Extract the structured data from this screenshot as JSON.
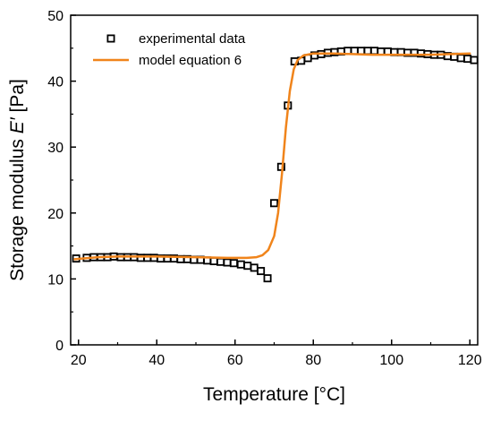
{
  "chart_data": {
    "type": "scatter",
    "xlabel": "Temperature [°C]",
    "ylabel_prefix": "Storage modulus ",
    "ylabel_symbol": "E′",
    "ylabel_suffix": " [Pa]",
    "xlim": [
      18,
      122
    ],
    "ylim": [
      0,
      50
    ],
    "xticks": [
      20,
      40,
      60,
      80,
      100,
      120
    ],
    "yticks": [
      0,
      10,
      20,
      30,
      40,
      50
    ],
    "legend_position": "top-left",
    "grid": false,
    "series": [
      {
        "name": "experimental data",
        "kind": "markers",
        "marker": "open-square",
        "color": "#000000",
        "points": [
          [
            19.4,
            13.1
          ],
          [
            22.1,
            13.2
          ],
          [
            23.9,
            13.3
          ],
          [
            25.7,
            13.3
          ],
          [
            27.4,
            13.3
          ],
          [
            29.0,
            13.4
          ],
          [
            30.8,
            13.3
          ],
          [
            32.5,
            13.3
          ],
          [
            34.2,
            13.3
          ],
          [
            35.9,
            13.2
          ],
          [
            37.6,
            13.2
          ],
          [
            39.3,
            13.2
          ],
          [
            41.0,
            13.1
          ],
          [
            42.7,
            13.1
          ],
          [
            44.4,
            13.1
          ],
          [
            46.1,
            13.0
          ],
          [
            47.8,
            13.0
          ],
          [
            49.5,
            12.9
          ],
          [
            51.2,
            12.9
          ],
          [
            52.9,
            12.8
          ],
          [
            54.6,
            12.7
          ],
          [
            56.3,
            12.6
          ],
          [
            58.0,
            12.5
          ],
          [
            59.7,
            12.4
          ],
          [
            61.5,
            12.2
          ],
          [
            63.2,
            12.0
          ],
          [
            64.9,
            11.7
          ],
          [
            66.6,
            11.2
          ],
          [
            68.3,
            10.1
          ],
          [
            70.0,
            21.5
          ],
          [
            71.8,
            27.0
          ],
          [
            73.5,
            36.3
          ],
          [
            75.2,
            43.0
          ],
          [
            76.9,
            43.1
          ],
          [
            78.6,
            43.5
          ],
          [
            80.3,
            43.9
          ],
          [
            82.0,
            44.1
          ],
          [
            83.7,
            44.3
          ],
          [
            85.4,
            44.4
          ],
          [
            87.1,
            44.5
          ],
          [
            88.8,
            44.6
          ],
          [
            90.5,
            44.6
          ],
          [
            92.2,
            44.6
          ],
          [
            93.9,
            44.6
          ],
          [
            95.6,
            44.6
          ],
          [
            97.3,
            44.5
          ],
          [
            99.0,
            44.5
          ],
          [
            100.7,
            44.4
          ],
          [
            102.4,
            44.4
          ],
          [
            104.1,
            44.3
          ],
          [
            105.8,
            44.3
          ],
          [
            107.5,
            44.2
          ],
          [
            109.2,
            44.1
          ],
          [
            110.9,
            44.0
          ],
          [
            112.6,
            44.0
          ],
          [
            114.3,
            43.8
          ],
          [
            116.0,
            43.7
          ],
          [
            117.7,
            43.5
          ],
          [
            119.4,
            43.4
          ],
          [
            121.1,
            43.2
          ]
        ]
      },
      {
        "name": "model equation 6",
        "kind": "line",
        "color": "#f0841b",
        "points": [
          [
            19.0,
            13.0
          ],
          [
            25.0,
            13.3
          ],
          [
            30.0,
            13.4
          ],
          [
            40.0,
            13.4
          ],
          [
            50.0,
            13.3
          ],
          [
            58.0,
            13.2
          ],
          [
            63.0,
            13.2
          ],
          [
            65.5,
            13.3
          ],
          [
            67.0,
            13.6
          ],
          [
            68.5,
            14.4
          ],
          [
            70.0,
            16.5
          ],
          [
            71.0,
            20.0
          ],
          [
            72.0,
            26.0
          ],
          [
            73.0,
            33.0
          ],
          [
            74.0,
            38.5
          ],
          [
            75.0,
            41.8
          ],
          [
            76.0,
            43.2
          ],
          [
            77.5,
            43.9
          ],
          [
            80.0,
            44.2
          ],
          [
            85.0,
            44.2
          ],
          [
            90.0,
            44.1
          ],
          [
            95.0,
            44.0
          ],
          [
            100.0,
            44.0
          ],
          [
            105.0,
            44.0
          ],
          [
            110.0,
            44.0
          ],
          [
            115.0,
            44.1
          ],
          [
            120.0,
            44.2
          ]
        ]
      }
    ]
  }
}
